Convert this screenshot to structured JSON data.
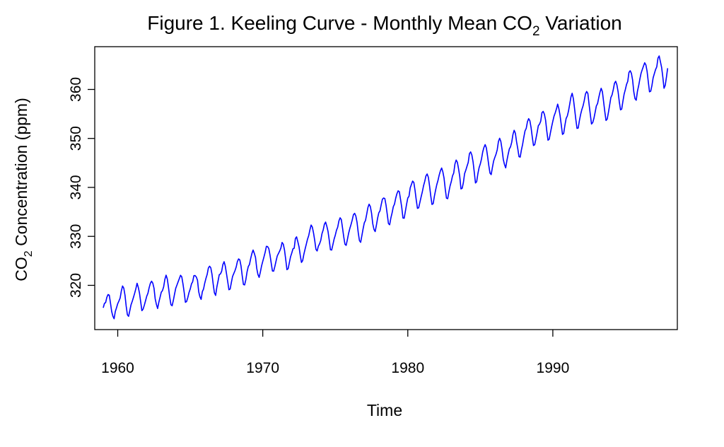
{
  "chart_data": {
    "type": "line",
    "title_main": "Figure 1. Keeling Curve - Monthly Mean CO",
    "title_sub": "2",
    "title_rest": " Variation",
    "xlabel": "Time",
    "ylabel_main": "CO",
    "ylabel_sub": "2",
    "ylabel_rest": " Concentration (ppm)",
    "xlim": [
      1959,
      1998
    ],
    "ylim": [
      312.7,
      367
    ],
    "x_ticks": [
      1960,
      1970,
      1980,
      1990
    ],
    "y_ticks": [
      320,
      330,
      340,
      350,
      360
    ],
    "grid": false,
    "legend": "none",
    "series": [
      {
        "color": "#0000ff",
        "start": 1959.0,
        "step": 0.0833333,
        "values": [
          315.42,
          316.31,
          316.5,
          317.56,
          318.13,
          318.0,
          316.39,
          314.65,
          313.68,
          313.18,
          314.66,
          315.43,
          316.27,
          316.81,
          317.42,
          318.87,
          319.87,
          319.43,
          318.01,
          315.74,
          314.0,
          313.68,
          314.84,
          316.03,
          316.73,
          317.54,
          318.38,
          319.31,
          320.42,
          319.61,
          318.42,
          316.63,
          314.83,
          315.16,
          315.94,
          316.85,
          317.78,
          318.4,
          319.53,
          320.42,
          320.85,
          320.45,
          319.45,
          317.25,
          316.11,
          315.27,
          316.53,
          317.53,
          318.58,
          318.92,
          319.7,
          321.22,
          322.08,
          321.31,
          319.58,
          317.61,
          316.05,
          315.83,
          316.91,
          318.2,
          319.41,
          320.07,
          320.74,
          321.4,
          322.06,
          321.73,
          320.27,
          318.54,
          316.54,
          316.71,
          317.53,
          318.55,
          319.27,
          320.28,
          320.73,
          321.97,
          322.0,
          321.71,
          321.05,
          318.71,
          317.66,
          317.14,
          318.7,
          319.25,
          320.46,
          321.43,
          322.23,
          323.54,
          323.91,
          323.59,
          322.24,
          320.2,
          318.48,
          317.94,
          319.63,
          320.87,
          322.17,
          322.34,
          322.88,
          324.25,
          324.83,
          323.93,
          322.38,
          320.76,
          319.1,
          319.24,
          320.56,
          321.8,
          322.4,
          322.99,
          323.73,
          324.86,
          325.4,
          325.2,
          323.98,
          321.95,
          320.18,
          320.09,
          321.16,
          322.74,
          323.83,
          324.26,
          325.47,
          326.5,
          327.21,
          326.54,
          325.72,
          323.5,
          322.22,
          321.62,
          322.69,
          323.95,
          324.89,
          325.82,
          326.77,
          327.97,
          327.91,
          327.5,
          326.18,
          324.53,
          322.93,
          322.9,
          323.85,
          324.96,
          326.01,
          326.51,
          327.01,
          327.62,
          328.76,
          328.4,
          327.2,
          325.27,
          323.2,
          323.4,
          324.63,
          325.85,
          326.6,
          327.47,
          327.58,
          329.56,
          329.9,
          328.92,
          327.88,
          326.16,
          324.68,
          325.04,
          326.34,
          327.39,
          328.37,
          329.4,
          330.14,
          331.33,
          332.31,
          331.9,
          330.7,
          329.15,
          327.35,
          327.02,
          327.99,
          328.48,
          329.18,
          330.55,
          331.32,
          332.48,
          332.92,
          332.08,
          331.01,
          329.23,
          327.27,
          327.21,
          328.29,
          329.41,
          330.23,
          331.25,
          331.87,
          333.14,
          333.8,
          333.43,
          331.73,
          329.9,
          328.4,
          328.17,
          329.32,
          330.59,
          331.58,
          332.39,
          333.33,
          334.41,
          334.71,
          334.17,
          332.89,
          330.77,
          329.14,
          328.78,
          330.14,
          331.52,
          332.75,
          333.24,
          334.53,
          335.9,
          336.57,
          336.1,
          334.76,
          332.59,
          331.42,
          330.98,
          332.24,
          333.68,
          334.8,
          335.22,
          336.47,
          337.59,
          337.84,
          337.72,
          336.37,
          334.51,
          332.6,
          332.38,
          333.75,
          334.78,
          336.05,
          336.59,
          337.79,
          338.71,
          339.3,
          339.12,
          337.56,
          335.92,
          333.75,
          333.7,
          335.12,
          336.56,
          337.84,
          338.19,
          339.91,
          340.6,
          341.29,
          341.0,
          339.39,
          337.43,
          335.72,
          335.84,
          336.93,
          338.04,
          339.06,
          340.3,
          341.21,
          342.33,
          342.74,
          342.08,
          340.32,
          338.26,
          336.52,
          336.68,
          338.19,
          339.44,
          340.57,
          341.44,
          342.53,
          343.39,
          343.96,
          343.18,
          341.88,
          339.65,
          337.81,
          337.69,
          339.09,
          340.32,
          341.2,
          342.35,
          342.93,
          344.77,
          345.58,
          345.14,
          343.81,
          342.21,
          339.69,
          339.82,
          340.98,
          342.82,
          343.52,
          344.33,
          345.11,
          346.88,
          347.25,
          346.62,
          345.22,
          343.11,
          340.9,
          341.17,
          342.8,
          344.04,
          344.79,
          345.82,
          347.25,
          348.17,
          348.74,
          348.07,
          346.38,
          344.51,
          342.92,
          342.62,
          344.06,
          345.38,
          346.11,
          346.78,
          347.68,
          349.37,
          350.03,
          349.37,
          347.76,
          345.73,
          344.68,
          343.99,
          345.48,
          346.72,
          347.84,
          348.29,
          349.23,
          350.8,
          351.66,
          351.07,
          349.33,
          347.92,
          346.27,
          346.18,
          347.64,
          348.78,
          350.25,
          351.54,
          352.05,
          353.41,
          354.04,
          353.62,
          352.22,
          350.27,
          348.55,
          348.72,
          349.91,
          351.18,
          352.6,
          352.92,
          353.53,
          355.26,
          355.52,
          354.97,
          353.75,
          351.52,
          349.64,
          349.83,
          351.14,
          352.37,
          353.5,
          354.55,
          355.23,
          356.04,
          357.0,
          356.07,
          354.67,
          352.76,
          350.82,
          351.04,
          352.69,
          354.07,
          354.59,
          355.63,
          357.03,
          358.48,
          359.22,
          358.12,
          356.06,
          353.92,
          352.05,
          352.11,
          353.64,
          354.89,
          355.88,
          356.63,
          357.72,
          359.07,
          359.58,
          359.17,
          356.94,
          354.92,
          352.94,
          353.23,
          354.09,
          355.33,
          356.63,
          357.1,
          358.32,
          359.41,
          360.23,
          359.55,
          357.53,
          355.48,
          353.67,
          353.95,
          355.3,
          356.78,
          358.34,
          358.89,
          359.95,
          361.25,
          361.67,
          360.94,
          359.55,
          357.49,
          355.84,
          356.0,
          357.59,
          359.05,
          359.98,
          361.03,
          361.66,
          363.48,
          363.82,
          363.3,
          361.94,
          359.5,
          358.11,
          357.8,
          359.61,
          360.74,
          362.09,
          363.29,
          364.06,
          364.76,
          365.45,
          365.01,
          363.7,
          361.54,
          359.51,
          359.65,
          360.8,
          362.38,
          363.23,
          364.06,
          364.61,
          366.4,
          366.84,
          365.68,
          364.52,
          362.57,
          360.24,
          360.83,
          362.49,
          364.34
        ]
      }
    ]
  }
}
